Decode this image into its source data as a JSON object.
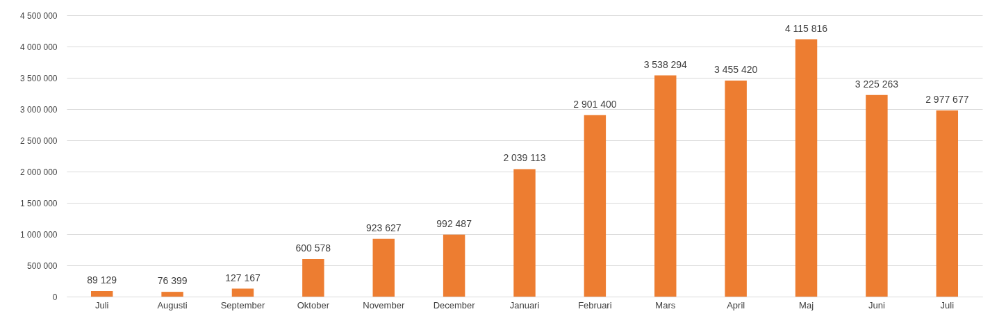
{
  "chart_data": {
    "type": "bar",
    "categories": [
      "Juli",
      "Augusti",
      "September",
      "Oktober",
      "November",
      "December",
      "Januari",
      "Februari",
      "Mars",
      "April",
      "Maj",
      "Juni",
      "Juli"
    ],
    "values": [
      89129,
      76399,
      127167,
      600578,
      923627,
      992487,
      2039113,
      2901400,
      3538294,
      3455420,
      4115816,
      3225263,
      2977677
    ],
    "value_labels": [
      "89 129",
      "76 399",
      "127 167",
      "600 578",
      "923 627",
      "992 487",
      "2 039 113",
      "2 901 400",
      "3 538 294",
      "3 455 420",
      "4 115 816",
      "3 225 263",
      "2 977 677"
    ],
    "color": "#ed7d31",
    "ylim": [
      0,
      4500000
    ],
    "yticks": [
      0,
      {
        "value": 500000,
        "label": "500 000"
      },
      {
        "value": 1000000,
        "label": "1 000 000"
      },
      {
        "value": 1500000,
        "label": "1 500 000"
      },
      {
        "value": 2000000,
        "label": "2 000 000"
      },
      {
        "value": 2500000,
        "label": "2 500 000"
      },
      {
        "value": 3000000,
        "label": "3 000 000"
      },
      {
        "value": 3500000,
        "label": "3 500 000"
      },
      {
        "value": 4000000,
        "label": "4 000 000"
      },
      {
        "value": 4500000,
        "label": "4 500 000"
      }
    ],
    "grid": true
  }
}
